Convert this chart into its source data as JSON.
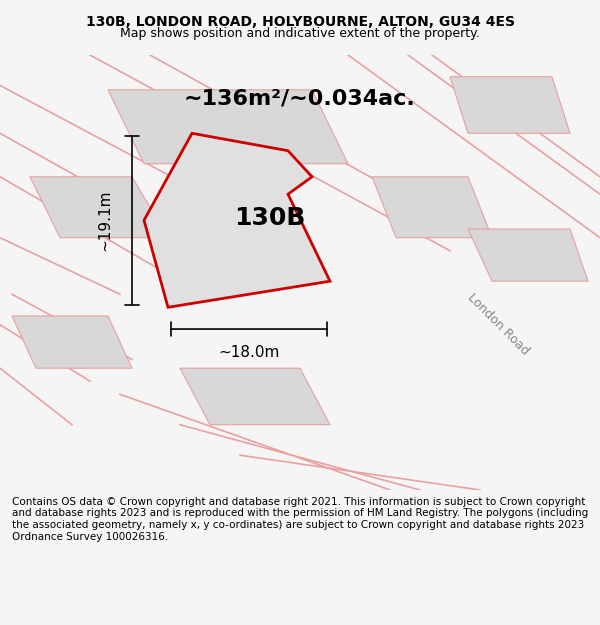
{
  "title_line1": "130B, LONDON ROAD, HOLYBOURNE, ALTON, GU34 4ES",
  "title_line2": "Map shows position and indicative extent of the property.",
  "area_text": "~136m²/~0.034ac.",
  "label_130B": "130B",
  "dim_width": "~18.0m",
  "dim_height": "~19.1m",
  "road_label": "London Road",
  "footer_text": "Contains OS data © Crown copyright and database right 2021. This information is subject to Crown copyright and database rights 2023 and is reproduced with the permission of HM Land Registry. The polygons (including the associated geometry, namely x, y co-ordinates) are subject to Crown copyright and database rights 2023 Ordnance Survey 100026316.",
  "bg_color": "#f0f0f0",
  "map_bg": "#e8e8e8",
  "plot_fill": "#e0e0e0",
  "plot_stroke": "#cc0000",
  "other_poly_fill": "#d8d8d8",
  "other_poly_stroke": "#e8a0a0",
  "road_line_color": "#e8a0a0",
  "title_fontsize": 10,
  "subtitle_fontsize": 9,
  "area_fontsize": 16,
  "label_fontsize": 18,
  "dim_fontsize": 11,
  "footer_fontsize": 7.5
}
